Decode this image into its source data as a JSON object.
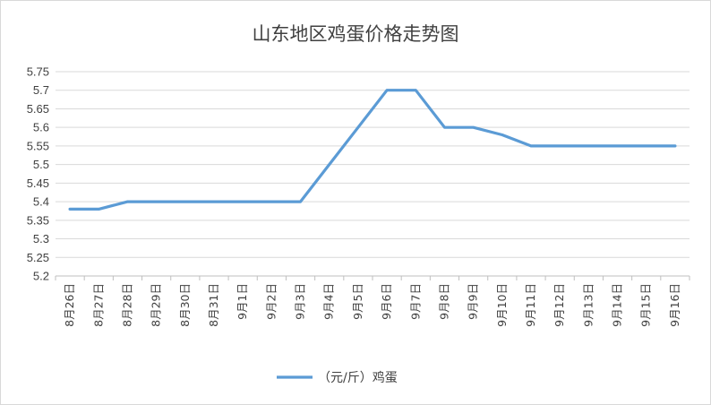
{
  "chart_data": {
    "type": "line",
    "title": "山东地区鸡蛋价格走势图",
    "xlabel": "",
    "ylabel": "",
    "categories": [
      "8月26日",
      "8月27日",
      "8月28日",
      "8月29日",
      "8月30日",
      "8月31日",
      "9月1日",
      "9月2日",
      "9月3日",
      "9月4日",
      "9月5日",
      "9月6日",
      "9月7日",
      "9月8日",
      "9月9日",
      "9月10日",
      "9月11日",
      "9月12日",
      "9月13日",
      "9月14日",
      "9月15日",
      "9月16日"
    ],
    "series": [
      {
        "name": "（元/斤）鸡蛋",
        "color": "#5b9bd5",
        "values": [
          5.38,
          5.38,
          5.4,
          5.4,
          5.4,
          5.4,
          5.4,
          5.4,
          5.4,
          5.5,
          5.6,
          5.7,
          5.7,
          5.6,
          5.6,
          5.58,
          5.55,
          5.55,
          5.55,
          5.55,
          5.55,
          5.55
        ]
      }
    ],
    "ylim": [
      5.2,
      5.75
    ],
    "yticks": [
      5.2,
      5.25,
      5.3,
      5.35,
      5.4,
      5.45,
      5.5,
      5.55,
      5.6,
      5.65,
      5.7,
      5.75
    ],
    "yticklabels": [
      "5.2",
      "5.25",
      "5.3",
      "5.35",
      "5.4",
      "5.45",
      "5.5",
      "5.55",
      "5.6",
      "5.65",
      "5.7",
      "5.75"
    ],
    "grid": true,
    "legend": "bottom"
  }
}
